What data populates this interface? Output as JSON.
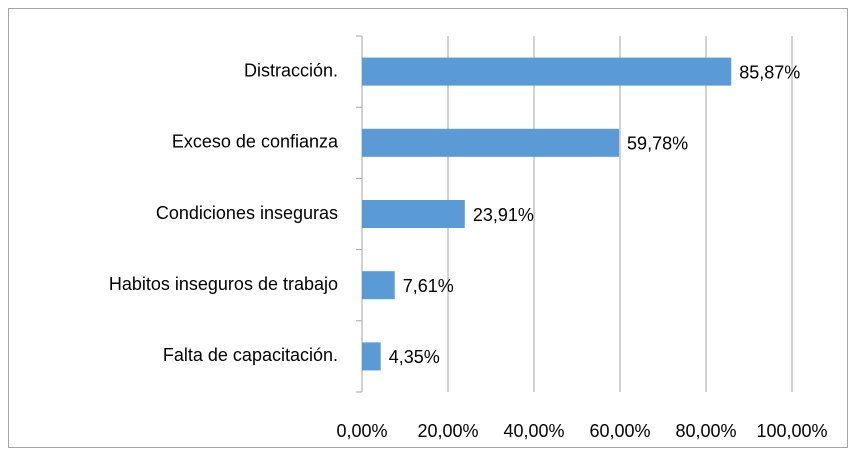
{
  "chart_data": {
    "type": "barh",
    "categories": [
      "Distracción.",
      "Exceso de confianza",
      "Condiciones inseguras",
      "Habitos inseguros de trabajo",
      "Falta de capacitación."
    ],
    "values": [
      85.87,
      59.78,
      23.91,
      7.61,
      4.35
    ],
    "value_labels": [
      "85,87%",
      "59,78%",
      "23,91%",
      "7,61%",
      "4,35%"
    ],
    "color": "#5b9bd5",
    "xlim": [
      0,
      100
    ],
    "xticks": [
      {
        "value": 0,
        "label": "0,00%"
      },
      {
        "value": 20,
        "label": "20,00%"
      },
      {
        "value": 40,
        "label": "40,00%"
      },
      {
        "value": 60,
        "label": "60,00%"
      },
      {
        "value": 80,
        "label": "80,00%"
      },
      {
        "value": 100,
        "label": "100,00%"
      }
    ],
    "grid": true
  }
}
